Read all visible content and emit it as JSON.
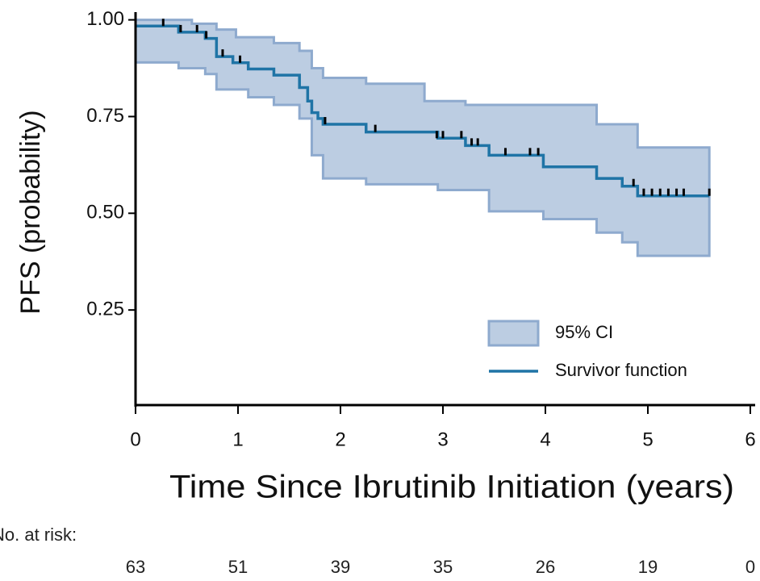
{
  "chart_data": {
    "type": "km",
    "y_label": "PFS (probability)",
    "x_label": "Time Since Ibrutinib Initiation (years)",
    "xlim": [
      0,
      6
    ],
    "ylim": [
      0,
      1.02
    ],
    "xticks": [
      0,
      1,
      2,
      3,
      4,
      5,
      6
    ],
    "yticks": [
      0.25,
      {
        "value": 0.5,
        "label": "0.50"
      },
      0.75,
      {
        "value": 1.0,
        "label": "1.00"
      }
    ],
    "series": [
      {
        "name": "Survivor function",
        "color": "#1f74a6",
        "x": [
          0,
          0.42,
          0.68,
          0.79,
          0.95,
          1.1,
          1.35,
          1.6,
          1.68,
          1.72,
          1.78,
          1.83,
          2.25,
          2.95,
          3.22,
          3.45,
          3.98,
          4.5,
          4.75,
          4.9,
          5.6
        ],
        "values": [
          0.984,
          0.968,
          0.952,
          0.905,
          0.889,
          0.873,
          0.857,
          0.825,
          0.79,
          0.76,
          0.745,
          0.73,
          0.71,
          0.694,
          0.675,
          0.65,
          0.62,
          0.59,
          0.57,
          0.545,
          0.545
        ]
      }
    ],
    "ci": {
      "name": "95% CI",
      "color": "#bccde2",
      "edge_color": "#8eaace",
      "x": [
        0,
        0.42,
        0.55,
        0.68,
        0.79,
        0.98,
        1.1,
        1.35,
        1.6,
        1.72,
        1.78,
        1.83,
        2.25,
        2.82,
        2.95,
        3.22,
        3.45,
        3.98,
        4.5,
        4.75,
        4.9,
        5.6
      ],
      "upper": [
        1.0,
        1.0,
        0.99,
        0.99,
        0.975,
        0.955,
        0.955,
        0.94,
        0.92,
        0.875,
        0.875,
        0.85,
        0.835,
        0.79,
        0.79,
        0.78,
        0.78,
        0.78,
        0.73,
        0.73,
        0.67,
        0.67
      ],
      "lower": [
        0.89,
        0.875,
        0.875,
        0.86,
        0.82,
        0.82,
        0.8,
        0.78,
        0.745,
        0.65,
        0.65,
        0.59,
        0.575,
        0.575,
        0.56,
        0.56,
        0.505,
        0.485,
        0.45,
        0.425,
        0.39,
        0.39
      ]
    },
    "censored": {
      "x": [
        0.27,
        0.44,
        0.6,
        0.69,
        0.85,
        1.02,
        1.85,
        2.34,
        2.94,
        3.0,
        3.18,
        3.28,
        3.34,
        3.61,
        3.85,
        3.93,
        4.86,
        4.96,
        5.04,
        5.12,
        5.2,
        5.28,
        5.35,
        5.6
      ],
      "values": [
        0.984,
        0.968,
        0.968,
        0.952,
        0.905,
        0.889,
        0.73,
        0.71,
        0.694,
        0.694,
        0.694,
        0.675,
        0.675,
        0.65,
        0.65,
        0.65,
        0.57,
        0.545,
        0.545,
        0.545,
        0.545,
        0.545,
        0.545,
        0.545
      ]
    },
    "at_risk": {
      "label": "No. at risk:",
      "values": [
        63,
        51,
        39,
        35,
        26,
        19,
        0
      ]
    }
  }
}
